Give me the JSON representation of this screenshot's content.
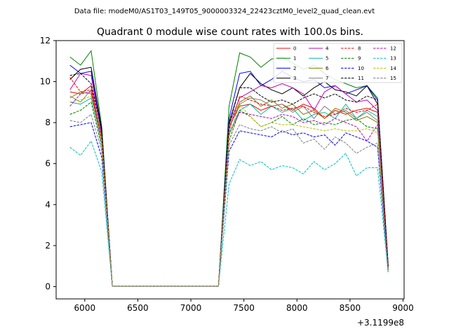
{
  "figure": {
    "suptitle": "Data file: modeM0/AS1T03_149T05_9000003324_22423cztM0_level2_quad_clean.evt"
  },
  "chart_data": {
    "type": "line",
    "title": "Quadrant 0 module wise count rates with 100.0s bins.",
    "xlabel": "",
    "ylabel": "",
    "x_offset_label": "+3.1199e8",
    "xlim": [
      5730,
      9010
    ],
    "ylim": [
      -0.6,
      12.0
    ],
    "xticks": [
      6000,
      6500,
      7000,
      7500,
      8000,
      8500,
      9000
    ],
    "yticks": [
      0,
      2,
      4,
      6,
      8,
      10,
      12
    ],
    "legend": {
      "placement": "top-right",
      "columns": 4
    },
    "grid": false,
    "x": [
      5860,
      5960,
      6060,
      6160,
      6260,
      6360,
      6460,
      6560,
      6660,
      6760,
      6860,
      6960,
      7060,
      7160,
      7260,
      7360,
      7460,
      7560,
      7660,
      7760,
      7860,
      7960,
      8060,
      8160,
      8260,
      8360,
      8460,
      8560,
      8660,
      8760,
      8860
    ],
    "series": [
      {
        "name": "0",
        "color": "#ff0000",
        "dash": false,
        "values": [
          9.5,
          9.4,
          9.8,
          7.2,
          0.03,
          0.03,
          0.03,
          0.03,
          0.03,
          0.03,
          0.03,
          0.03,
          0.03,
          0.03,
          0.03,
          7.8,
          8.8,
          8.9,
          8.6,
          8.8,
          8.9,
          8.6,
          8.9,
          8.7,
          8.2,
          8.6,
          8.4,
          8.6,
          8.7,
          8.5,
          0.9
        ]
      },
      {
        "name": "1",
        "color": "#008000",
        "dash": false,
        "values": [
          11.2,
          10.8,
          11.5,
          7.8,
          0.03,
          0.03,
          0.03,
          0.03,
          0.03,
          0.03,
          0.03,
          0.03,
          0.03,
          0.03,
          0.03,
          8.8,
          11.4,
          11.2,
          10.7,
          11.1,
          11.2,
          10.9,
          10.6,
          10.8,
          10.4,
          10.1,
          9.9,
          9.7,
          9.8,
          9.2,
          1.1
        ]
      },
      {
        "name": "2",
        "color": "#0000ff",
        "dash": false,
        "values": [
          10.8,
          10.4,
          10.5,
          7.5,
          0.03,
          0.03,
          0.03,
          0.03,
          0.03,
          0.03,
          0.03,
          0.03,
          0.03,
          0.03,
          0.03,
          8.2,
          10.4,
          10.5,
          9.8,
          10.1,
          10.5,
          10.2,
          10.0,
          10.1,
          9.7,
          9.8,
          9.4,
          9.6,
          9.8,
          9.1,
          1.0
        ]
      },
      {
        "name": "3",
        "color": "#000000",
        "dash": false,
        "values": [
          10.1,
          10.6,
          10.7,
          7.7,
          0.03,
          0.03,
          0.03,
          0.03,
          0.03,
          0.03,
          0.03,
          0.03,
          0.03,
          0.03,
          0.03,
          8.0,
          9.7,
          10.4,
          9.9,
          9.6,
          9.4,
          9.7,
          9.3,
          9.7,
          10.0,
          9.6,
          9.5,
          9.3,
          9.8,
          8.9,
          1.0
        ]
      },
      {
        "name": "4",
        "color": "#bf00bf",
        "dash": false,
        "values": [
          9.6,
          10.4,
          10.3,
          7.4,
          0.03,
          0.03,
          0.03,
          0.03,
          0.03,
          0.03,
          0.03,
          0.03,
          0.03,
          0.03,
          0.03,
          7.9,
          9.2,
          9.5,
          9.8,
          9.7,
          9.9,
          9.7,
          9.4,
          8.6,
          9.5,
          9.8,
          9.4,
          9.0,
          9.1,
          8.6,
          1.0
        ]
      },
      {
        "name": "5",
        "color": "#00bfa0",
        "dash": false,
        "values": [
          9.0,
          8.9,
          9.2,
          7.0,
          0.03,
          0.03,
          0.03,
          0.03,
          0.03,
          0.03,
          0.03,
          0.03,
          0.03,
          0.03,
          0.03,
          7.5,
          8.6,
          8.9,
          8.4,
          8.8,
          8.5,
          8.7,
          8.1,
          8.4,
          8.5,
          8.2,
          8.9,
          8.2,
          8.6,
          8.3,
          0.9
        ]
      },
      {
        "name": "6",
        "color": "#808000",
        "dash": false,
        "values": [
          9.2,
          9.5,
          9.4,
          7.2,
          0.03,
          0.03,
          0.03,
          0.03,
          0.03,
          0.03,
          0.03,
          0.03,
          0.03,
          0.03,
          0.03,
          7.7,
          9.0,
          9.3,
          8.8,
          9.1,
          8.7,
          8.9,
          8.4,
          8.6,
          8.2,
          8.7,
          8.5,
          8.1,
          8.3,
          8.0,
          0.9
        ]
      },
      {
        "name": "7",
        "color": "#808080",
        "dash": false,
        "values": [
          9.3,
          9.0,
          9.6,
          7.3,
          0.03,
          0.03,
          0.03,
          0.03,
          0.03,
          0.03,
          0.03,
          0.03,
          0.03,
          0.03,
          0.03,
          7.8,
          8.9,
          9.2,
          9.1,
          8.8,
          8.9,
          8.5,
          8.8,
          8.2,
          8.8,
          8.4,
          8.6,
          8.2,
          8.5,
          8.1,
          0.9
        ]
      },
      {
        "name": "8",
        "color": "#ff0000",
        "dash": true,
        "values": [
          10.2,
          9.5,
          9.6,
          7.2,
          0.03,
          0.03,
          0.03,
          0.03,
          0.03,
          0.03,
          0.03,
          0.03,
          0.03,
          0.03,
          0.03,
          7.6,
          9.3,
          9.1,
          8.9,
          8.8,
          8.6,
          8.7,
          8.8,
          8.5,
          8.3,
          8.4,
          8.7,
          8.5,
          8.6,
          8.9,
          0.9
        ]
      },
      {
        "name": "9",
        "color": "#008000",
        "dash": true,
        "values": [
          8.4,
          8.6,
          9.0,
          6.8,
          0.03,
          0.03,
          0.03,
          0.03,
          0.03,
          0.03,
          0.03,
          0.03,
          0.03,
          0.03,
          0.03,
          7.1,
          8.6,
          8.3,
          7.8,
          8.0,
          8.3,
          7.9,
          8.2,
          7.9,
          8.0,
          7.9,
          8.1,
          8.2,
          7.8,
          7.7,
          0.8
        ]
      },
      {
        "name": "10",
        "color": "#0000ff",
        "dash": true,
        "values": [
          7.8,
          7.9,
          8.0,
          6.3,
          0.03,
          0.03,
          0.03,
          0.03,
          0.03,
          0.03,
          0.03,
          0.03,
          0.03,
          0.03,
          0.03,
          6.6,
          7.6,
          7.5,
          7.4,
          7.3,
          7.6,
          7.4,
          7.5,
          7.3,
          7.4,
          6.9,
          7.5,
          7.3,
          7.1,
          6.8,
          0.7
        ]
      },
      {
        "name": "11",
        "color": "#000000",
        "dash": true,
        "values": [
          10.3,
          10.4,
          9.9,
          7.6,
          0.03,
          0.03,
          0.03,
          0.03,
          0.03,
          0.03,
          0.03,
          0.03,
          0.03,
          0.03,
          0.03,
          7.9,
          9.7,
          9.7,
          9.3,
          9.0,
          9.1,
          8.9,
          9.2,
          9.4,
          9.2,
          9.4,
          9.1,
          9.0,
          9.3,
          9.1,
          1.0
        ]
      },
      {
        "name": "12",
        "color": "#bf00bf",
        "dash": true,
        "values": [
          8.8,
          9.4,
          9.5,
          7.0,
          0.03,
          0.03,
          0.03,
          0.03,
          0.03,
          0.03,
          0.03,
          0.03,
          0.03,
          0.03,
          0.03,
          7.4,
          8.5,
          8.4,
          8.3,
          8.2,
          8.4,
          8.3,
          8.0,
          8.1,
          7.9,
          8.2,
          8.0,
          7.8,
          7.1,
          7.9,
          0.8
        ]
      },
      {
        "name": "13",
        "color": "#00bfbf",
        "dash": true,
        "values": [
          6.8,
          6.4,
          7.1,
          5.6,
          0.03,
          0.03,
          0.03,
          0.03,
          0.03,
          0.03,
          0.03,
          0.03,
          0.03,
          0.03,
          0.03,
          5.0,
          6.2,
          5.9,
          6.1,
          5.7,
          5.9,
          5.8,
          5.5,
          6.1,
          5.7,
          6.0,
          6.5,
          5.4,
          5.8,
          5.8,
          0.7
        ]
      },
      {
        "name": "14",
        "color": "#bfbf00",
        "dash": true,
        "values": [
          9.0,
          9.1,
          9.3,
          7.1,
          0.03,
          0.03,
          0.03,
          0.03,
          0.03,
          0.03,
          0.03,
          0.03,
          0.03,
          0.03,
          0.03,
          7.3,
          8.9,
          8.3,
          7.8,
          8.0,
          7.9,
          7.9,
          7.8,
          7.7,
          7.6,
          7.7,
          7.6,
          7.6,
          7.7,
          7.5,
          0.8
        ]
      },
      {
        "name": "15",
        "color": "#808080",
        "dash": true,
        "values": [
          8.1,
          8.0,
          8.4,
          6.6,
          0.03,
          0.03,
          0.03,
          0.03,
          0.03,
          0.03,
          0.03,
          0.03,
          0.03,
          0.03,
          0.03,
          6.9,
          7.9,
          7.7,
          7.6,
          7.8,
          7.5,
          7.7,
          7.0,
          7.2,
          6.7,
          7.3,
          7.0,
          6.5,
          6.8,
          7.0,
          0.8
        ]
      }
    ]
  }
}
